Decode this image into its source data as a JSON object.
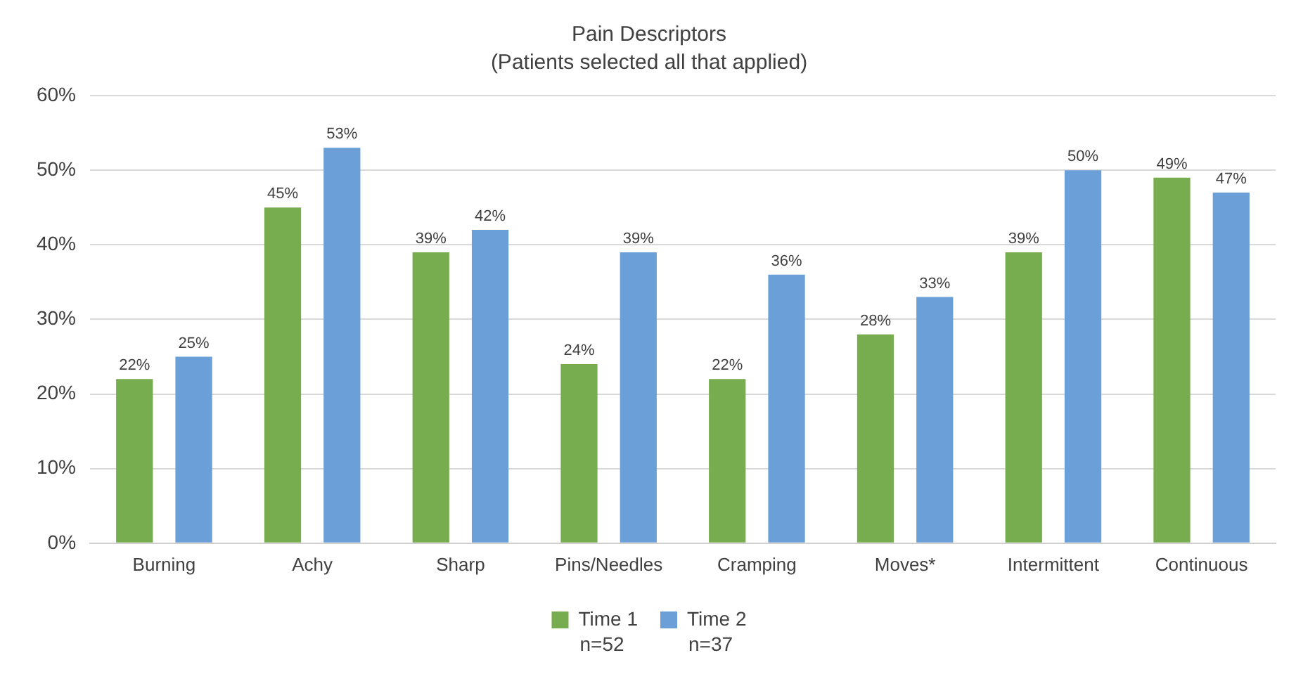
{
  "chart_data": {
    "type": "bar",
    "title": "Pain Descriptors",
    "subtitle": "(Patients selected all that applied)",
    "categories": [
      "Burning",
      "Achy",
      "Sharp",
      "Pins/Needles",
      "Cramping",
      "Moves*",
      "Intermittent",
      "Continuous"
    ],
    "series": [
      {
        "name": "Time 1",
        "color": "#77ac4f",
        "values": [
          22,
          45,
          39,
          24,
          22,
          28,
          39,
          49
        ],
        "value_labels": [
          "22%",
          "45%",
          "39%",
          "24%",
          "22%",
          "28%",
          "39%",
          "49%"
        ]
      },
      {
        "name": "Time 2",
        "color": "#6a9fd8",
        "values": [
          25,
          53,
          42,
          39,
          36,
          33,
          50,
          47
        ],
        "value_labels": [
          "25%",
          "53%",
          "42%",
          "39%",
          "36%",
          "33%",
          "50%",
          "47%"
        ]
      }
    ],
    "annotations": [
      "n=52",
      "n=37"
    ],
    "ylim": [
      0,
      60
    ],
    "yticks": [
      {
        "value": 0,
        "label": "0%"
      },
      {
        "value": 10,
        "label": "10%"
      },
      {
        "value": 20,
        "label": "20%"
      },
      {
        "value": 30,
        "label": "30%"
      },
      {
        "value": 40,
        "label": "40%"
      },
      {
        "value": 50,
        "label": "50%"
      },
      {
        "value": 60,
        "label": "60%"
      }
    ],
    "grid": "y",
    "legend": "bottom"
  }
}
